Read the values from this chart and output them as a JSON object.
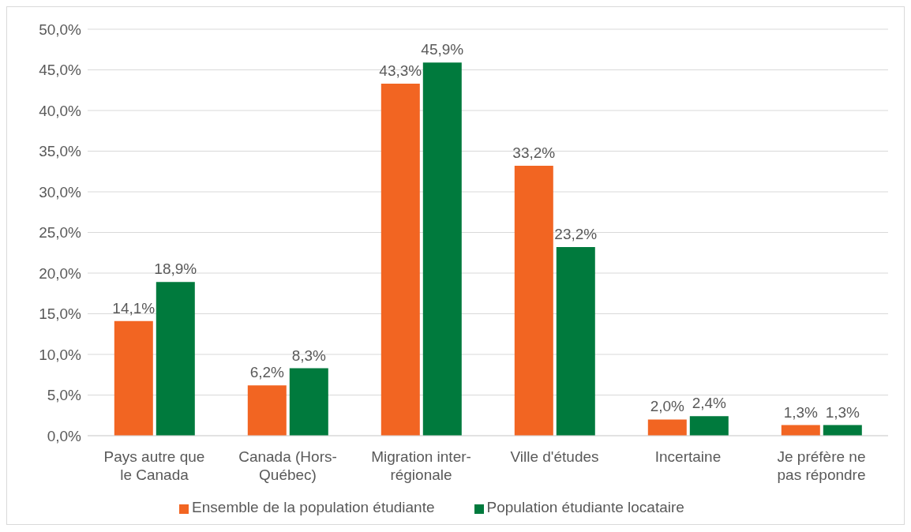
{
  "chart_data": {
    "type": "bar",
    "categories": [
      "Pays autre que le Canada",
      "Canada (Hors-Québec)",
      "Migration inter-régionale",
      "Ville d'études",
      "Incertaine",
      "Je préfère ne pas répondre"
    ],
    "series": [
      {
        "name": "Ensemble de la population étudiante",
        "color": "#f26522",
        "values": [
          14.1,
          6.2,
          43.3,
          33.2,
          2.0,
          1.3
        ],
        "value_labels": [
          "14,1%",
          "6,2%",
          "43,3%",
          "33,2%",
          "2,0%",
          "1,3%"
        ]
      },
      {
        "name": "Population étudiante locataire",
        "color": "#007a3d",
        "values": [
          18.9,
          8.3,
          45.9,
          23.2,
          2.4,
          1.3
        ],
        "value_labels": [
          "18,9%",
          "8,3%",
          "45,9%",
          "23,2%",
          "2,4%",
          "1,3%"
        ]
      }
    ],
    "ylim": [
      0,
      50
    ],
    "yticks": [
      {
        "value": 0,
        "label": "0,0%"
      },
      {
        "value": 5,
        "label": "5,0%"
      },
      {
        "value": 10,
        "label": "10,0%"
      },
      {
        "value": 15,
        "label": "15,0%"
      },
      {
        "value": 20,
        "label": "20,0%"
      },
      {
        "value": 25,
        "label": "25,0%"
      },
      {
        "value": 30,
        "label": "30,0%"
      },
      {
        "value": 35,
        "label": "35,0%"
      },
      {
        "value": 40,
        "label": "40,0%"
      },
      {
        "value": 45,
        "label": "45,0%"
      },
      {
        "value": 50,
        "label": "50,0%"
      }
    ],
    "grid": "y",
    "legend": "bottom"
  }
}
